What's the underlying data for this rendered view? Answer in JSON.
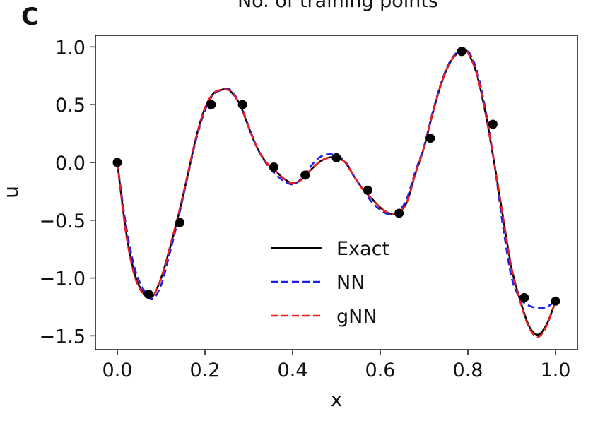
{
  "panel_label": "C",
  "chart_data": {
    "type": "line",
    "title": "No. of training points",
    "xlabel": "x",
    "ylabel": "u",
    "xlim": [
      -0.05,
      1.05
    ],
    "ylim": [
      -1.62,
      1.1
    ],
    "xticks": [
      0.0,
      0.2,
      0.4,
      0.6,
      0.8,
      1.0
    ],
    "xtick_labels": [
      "0.0",
      "0.2",
      "0.4",
      "0.6",
      "0.8",
      "1.0"
    ],
    "yticks": [
      1.0,
      0.5,
      0.0,
      -0.5,
      -1.0,
      -1.5
    ],
    "ytick_labels": [
      "1.0",
      "0.5",
      "0.0",
      "−0.5",
      "−1.0",
      "−1.5"
    ],
    "grid": false,
    "legend_position": "center",
    "series": [
      {
        "name": "Exact",
        "color": "#000000",
        "dash": "solid",
        "x": [
          0.0,
          0.02,
          0.04,
          0.06,
          0.08,
          0.1,
          0.12,
          0.14,
          0.16,
          0.18,
          0.2,
          0.22,
          0.24,
          0.25,
          0.26,
          0.28,
          0.3,
          0.32,
          0.34,
          0.36,
          0.38,
          0.4,
          0.42,
          0.44,
          0.46,
          0.48,
          0.5,
          0.52,
          0.54,
          0.56,
          0.58,
          0.6,
          0.62,
          0.64,
          0.66,
          0.68,
          0.7,
          0.72,
          0.74,
          0.76,
          0.78,
          0.79,
          0.8,
          0.82,
          0.84,
          0.86,
          0.88,
          0.9,
          0.92,
          0.94,
          0.96,
          0.98,
          1.0
        ],
        "y": [
          0.0,
          -0.6,
          -0.97,
          -1.13,
          -1.16,
          -1.0,
          -0.74,
          -0.45,
          -0.12,
          0.22,
          0.47,
          0.6,
          0.63,
          0.63,
          0.61,
          0.5,
          0.3,
          0.12,
          0.0,
          -0.07,
          -0.14,
          -0.18,
          -0.15,
          -0.07,
          0.0,
          0.04,
          0.04,
          0.0,
          -0.12,
          -0.23,
          -0.31,
          -0.39,
          -0.44,
          -0.44,
          -0.35,
          -0.1,
          0.13,
          0.43,
          0.69,
          0.87,
          0.96,
          0.97,
          0.95,
          0.77,
          0.43,
          0.0,
          -0.47,
          -0.92,
          -1.2,
          -1.42,
          -1.49,
          -1.4,
          -1.2
        ]
      },
      {
        "name": "NN",
        "color": "#1f1fe0",
        "dash": "dashed",
        "x": [
          0.0,
          0.02,
          0.04,
          0.06,
          0.08,
          0.1,
          0.12,
          0.14,
          0.16,
          0.18,
          0.2,
          0.22,
          0.24,
          0.25,
          0.26,
          0.28,
          0.3,
          0.32,
          0.34,
          0.36,
          0.38,
          0.4,
          0.42,
          0.44,
          0.46,
          0.48,
          0.5,
          0.52,
          0.54,
          0.56,
          0.58,
          0.6,
          0.62,
          0.64,
          0.66,
          0.68,
          0.7,
          0.72,
          0.74,
          0.76,
          0.78,
          0.79,
          0.8,
          0.82,
          0.84,
          0.86,
          0.88,
          0.9,
          0.92,
          0.94,
          0.96,
          0.98,
          1.0
        ],
        "y": [
          0.0,
          -0.55,
          -0.92,
          -1.1,
          -1.18,
          -1.06,
          -0.78,
          -0.47,
          -0.13,
          0.2,
          0.45,
          0.59,
          0.63,
          0.64,
          0.62,
          0.51,
          0.31,
          0.12,
          -0.01,
          -0.1,
          -0.16,
          -0.19,
          -0.14,
          -0.04,
          0.04,
          0.07,
          0.06,
          0.01,
          -0.12,
          -0.23,
          -0.34,
          -0.41,
          -0.45,
          -0.43,
          -0.32,
          -0.08,
          0.14,
          0.44,
          0.7,
          0.88,
          0.97,
          0.98,
          0.97,
          0.8,
          0.46,
          0.0,
          -0.55,
          -1.0,
          -1.18,
          -1.24,
          -1.26,
          -1.25,
          -1.2
        ]
      },
      {
        "name": "gNN",
        "color": "#ee1c1c",
        "dash": "dashed",
        "x": [
          0.0,
          0.02,
          0.04,
          0.06,
          0.08,
          0.1,
          0.12,
          0.14,
          0.16,
          0.18,
          0.2,
          0.22,
          0.24,
          0.25,
          0.26,
          0.28,
          0.3,
          0.32,
          0.34,
          0.36,
          0.38,
          0.4,
          0.42,
          0.44,
          0.46,
          0.48,
          0.5,
          0.52,
          0.54,
          0.56,
          0.58,
          0.6,
          0.62,
          0.64,
          0.66,
          0.68,
          0.7,
          0.72,
          0.74,
          0.76,
          0.78,
          0.79,
          0.8,
          0.82,
          0.84,
          0.86,
          0.88,
          0.9,
          0.92,
          0.94,
          0.96,
          0.98,
          1.0
        ],
        "y": [
          0.0,
          -0.62,
          -0.99,
          -1.14,
          -1.16,
          -1.0,
          -0.73,
          -0.44,
          -0.11,
          0.22,
          0.47,
          0.6,
          0.63,
          0.63,
          0.61,
          0.5,
          0.3,
          0.12,
          0.0,
          -0.07,
          -0.14,
          -0.18,
          -0.15,
          -0.07,
          0.0,
          0.04,
          0.04,
          0.0,
          -0.12,
          -0.23,
          -0.31,
          -0.39,
          -0.44,
          -0.44,
          -0.35,
          -0.1,
          0.13,
          0.43,
          0.69,
          0.87,
          0.96,
          0.97,
          0.95,
          0.77,
          0.43,
          0.0,
          -0.47,
          -0.92,
          -1.21,
          -1.43,
          -1.51,
          -1.41,
          -1.2
        ]
      }
    ],
    "training_points": {
      "name": "training points",
      "color": "#000000",
      "x": [
        0.0,
        0.0714,
        0.1429,
        0.2143,
        0.2857,
        0.3571,
        0.4286,
        0.5,
        0.5714,
        0.6429,
        0.7143,
        0.7857,
        0.8571,
        0.9286,
        1.0
      ],
      "y": [
        0.0,
        -1.14,
        -0.52,
        0.5,
        0.5,
        -0.04,
        -0.11,
        0.04,
        -0.24,
        -0.44,
        0.21,
        0.96,
        0.33,
        -1.17,
        -1.2
      ]
    }
  }
}
